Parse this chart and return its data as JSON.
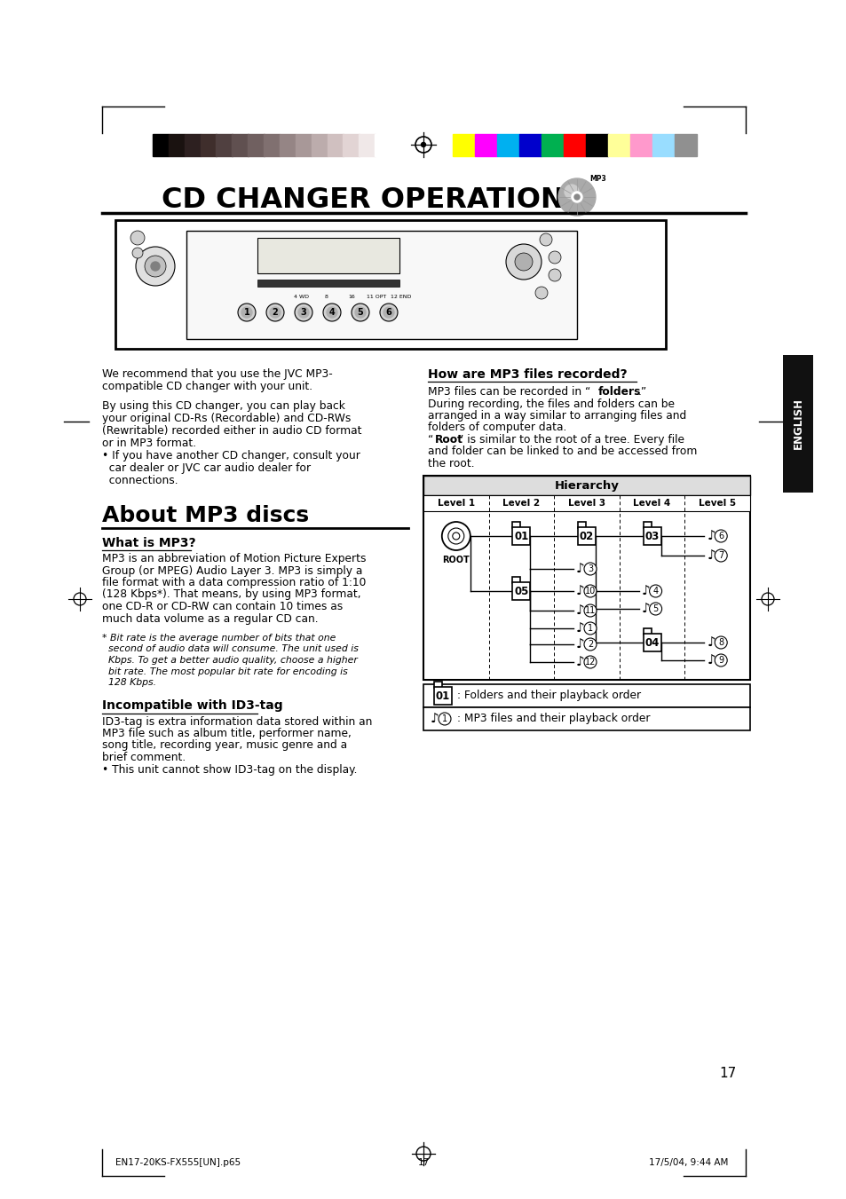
{
  "bg_color": "#ffffff",
  "page_title": "CD CHANGER OPERATIONS",
  "section1_title": "About MP3 discs",
  "subsection1_title": "What is MP3?",
  "subsection1_body": "MP3 is an abbreviation of Motion Picture Experts\nGroup (or MPEG) Audio Layer 3. MP3 is simply a\nfile format with a data compression ratio of 1:10\n(128 Kbps*). That means, by using MP3 format,\none CD-R or CD-RW can contain 10 times as\nmuch data volume as a regular CD can.",
  "footnote_star": "* Bit rate is the average number of bits that one\n  second of audio data will consume. The unit used is\n  Kbps. To get a better audio quality, choose a higher\n  bit rate. The most popular bit rate for encoding is\n  128 Kbps.",
  "subsection2_title": "Incompatible with ID3-tag",
  "subsection2_body": "ID3-tag is extra information data stored within an\nMP3 file such as album title, performer name,\nsong title, recording year, music genre and a\nbrief comment.\n• This unit cannot show ID3-tag on the display.",
  "intro_para1": "We recommend that you use the JVC MP3-\ncompatible CD changer with your unit.",
  "intro_para2": "By using this CD changer, you can play back\nyour original CD-Rs (Recordable) and CD-RWs\n(Rewritable) recorded either in audio CD format\nor in MP3 format.\n• If you have another CD changer, consult your\n  car dealer or JVC car audio dealer for\n  connections.",
  "right_section_title": "How are MP3 files recorded?",
  "right_section_body_pre": "MP3 files can be recorded in “",
  "right_section_body_bold": "folders",
  "right_section_body_post": ".”\nDuring recording, the files and folders can be\narranged in a way similar to arranging files and\nfolders of computer data.\n“",
  "right_section_root_bold": "Root",
  "right_section_body_end": "” is similar to the root of a tree. Every file\nand folder can be linked to and be accessed from\nthe root.",
  "hierarchy_title": "Hierarchy",
  "hierarchy_cols": [
    "Level 1",
    "Level 2",
    "Level 3",
    "Level 4",
    "Level 5"
  ],
  "legend_folder_text": ": Folders and their playback order",
  "legend_note_text": ": MP3 files and their playback order",
  "page_number": "17",
  "footer_left": "EN17-20KS-FX555[UN].p65",
  "footer_center": "17",
  "footer_right": "17/5/04, 9:44 AM",
  "english_tab_text": "ENGLISH",
  "bw_colors": [
    "#000000",
    "#1a1210",
    "#2d2020",
    "#3f2e2c",
    "#504040",
    "#605050",
    "#706060",
    "#807070",
    "#958585",
    "#a89898",
    "#bcacac",
    "#d0c0c0",
    "#e2d4d4",
    "#f0e8e8",
    "#ffffff"
  ],
  "color_bars": [
    "#ffff00",
    "#ff00ff",
    "#00b0f0",
    "#0000cc",
    "#00b050",
    "#ff0000",
    "#000000",
    "#ffff99",
    "#ff99cc",
    "#99ddff",
    "#909090"
  ]
}
